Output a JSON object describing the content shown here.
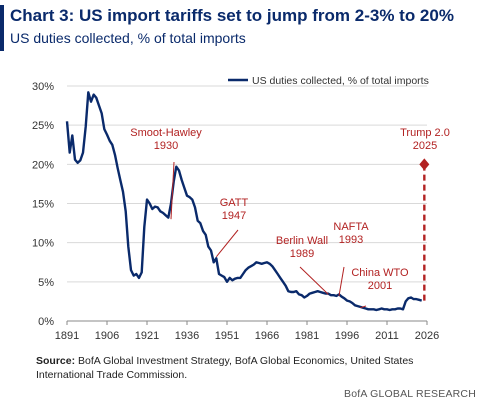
{
  "header": {
    "title": "Chart 3: US import tariffs set to jump from 2-3% to 20%",
    "subtitle": "US duties collected, % of total imports"
  },
  "colors": {
    "line": "#0a2a6b",
    "annotation": "#b22222",
    "grid": "#d9d9d9",
    "axis_text": "#333333"
  },
  "chart_data": {
    "type": "line",
    "xlim": [
      1891,
      2026
    ],
    "ylim": [
      0,
      30
    ],
    "x_ticks": [
      1891,
      1906,
      1921,
      1936,
      1951,
      1966,
      1981,
      1996,
      2011,
      2026
    ],
    "y_ticks": [
      0,
      5,
      10,
      15,
      20,
      25,
      30
    ],
    "y_tick_labels": [
      "0%",
      "5%",
      "10%",
      "15%",
      "20%",
      "25%",
      "30%"
    ],
    "grid": "horizontal",
    "legend": {
      "position": "top-right",
      "label": "US duties collected, % of total imports"
    },
    "series": [
      {
        "name": "US duties collected, % of total imports",
        "x": [
          1891,
          1892,
          1893,
          1894,
          1895,
          1896,
          1897,
          1898,
          1899,
          1900,
          1901,
          1902,
          1903,
          1904,
          1905,
          1906,
          1907,
          1908,
          1909,
          1910,
          1911,
          1912,
          1913,
          1914,
          1915,
          1916,
          1917,
          1918,
          1919,
          1920,
          1921,
          1922,
          1923,
          1924,
          1925,
          1926,
          1927,
          1928,
          1929,
          1930,
          1931,
          1932,
          1933,
          1934,
          1935,
          1936,
          1937,
          1938,
          1939,
          1940,
          1941,
          1942,
          1943,
          1944,
          1945,
          1946,
          1947,
          1948,
          1949,
          1950,
          1951,
          1952,
          1953,
          1954,
          1955,
          1956,
          1957,
          1958,
          1959,
          1960,
          1961,
          1962,
          1963,
          1964,
          1965,
          1966,
          1967,
          1968,
          1969,
          1970,
          1971,
          1972,
          1973,
          1974,
          1975,
          1976,
          1977,
          1978,
          1979,
          1980,
          1981,
          1982,
          1983,
          1984,
          1985,
          1986,
          1987,
          1988,
          1989,
          1990,
          1991,
          1992,
          1993,
          1994,
          1995,
          1996,
          1997,
          1998,
          1999,
          2000,
          2001,
          2002,
          2003,
          2004,
          2005,
          2006,
          2007,
          2008,
          2009,
          2010,
          2011,
          2012,
          2013,
          2014,
          2015,
          2016,
          2017,
          2018,
          2019,
          2020,
          2021,
          2022,
          2023,
          2024
        ],
        "values": [
          25.5,
          21.5,
          23.7,
          20.6,
          20.2,
          20.5,
          21.5,
          24.8,
          29.2,
          28.0,
          28.9,
          28.5,
          27.5,
          26.5,
          24.5,
          23.8,
          23.0,
          22.5,
          21.2,
          19.5,
          18.0,
          16.5,
          14.0,
          9.5,
          6.5,
          5.8,
          6.0,
          5.5,
          6.2,
          12.0,
          15.5,
          15.0,
          14.3,
          14.6,
          14.5,
          14.0,
          13.8,
          13.5,
          13.2,
          15.0,
          17.8,
          19.7,
          19.2,
          18.0,
          17.0,
          16.0,
          15.8,
          15.5,
          14.5,
          12.8,
          12.5,
          11.5,
          11.0,
          9.5,
          9.0,
          7.5,
          8.0,
          6.0,
          5.8,
          5.6,
          5.0,
          5.5,
          5.2,
          5.4,
          5.5,
          5.5,
          6.0,
          6.5,
          6.8,
          7.0,
          7.2,
          7.5,
          7.4,
          7.3,
          7.4,
          7.5,
          7.3,
          7.0,
          6.5,
          6.0,
          5.5,
          5.0,
          4.5,
          3.8,
          3.7,
          3.7,
          3.8,
          3.4,
          3.3,
          3.0,
          3.2,
          3.5,
          3.6,
          3.7,
          3.8,
          3.7,
          3.6,
          3.5,
          3.5,
          3.3,
          3.3,
          3.2,
          3.4,
          3.1,
          2.9,
          2.6,
          2.5,
          2.3,
          2.0,
          1.9,
          1.8,
          1.7,
          1.6,
          1.5,
          1.5,
          1.5,
          1.4,
          1.5,
          1.6,
          1.5,
          1.5,
          1.4,
          1.5,
          1.5,
          1.6,
          1.6,
          1.5,
          2.5,
          2.9,
          3.0,
          2.8,
          2.8,
          2.7,
          2.6
        ]
      }
    ],
    "projection": {
      "x": 2025,
      "from": 2.6,
      "to": 20,
      "style": "dashed"
    },
    "annotations": [
      {
        "label": [
          "Smoot-Hawley",
          "1930"
        ],
        "x": 1930,
        "y": 13.0
      },
      {
        "label": [
          "GATT",
          "1947"
        ],
        "x": 1947,
        "y": 8.2
      },
      {
        "label": [
          "Berlin Wall",
          "1989"
        ],
        "x": 1989,
        "y": 3.4
      },
      {
        "label": [
          "NAFTA",
          "1993"
        ],
        "x": 1993,
        "y": 3.2
      },
      {
        "label": [
          "China WTO",
          "2001"
        ],
        "x": 2001,
        "y": 1.7
      },
      {
        "label": [
          "Trump 2.0",
          "2025"
        ],
        "x": 2025,
        "y": 20
      }
    ]
  },
  "footer": {
    "source_label": "Source:",
    "source_text": " BofA Global Investment Strategy, BofA Global Economics, United States International Trade Commission.",
    "brand": "BofA GLOBAL RESEARCH"
  }
}
